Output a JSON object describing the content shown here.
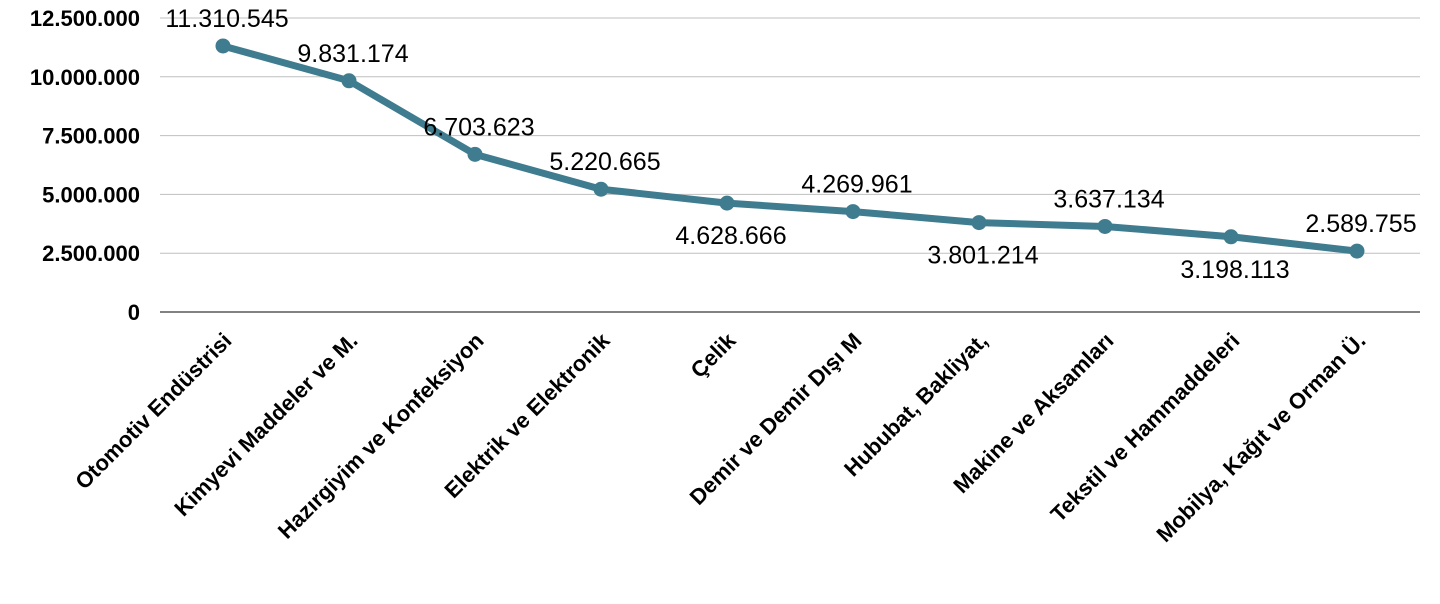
{
  "chart_data": {
    "type": "line",
    "title": "",
    "xlabel": "",
    "ylabel": "",
    "categories": [
      "Otomotiv Endüstrisi",
      "Kimyevi Maddeler ve M.",
      "Hazırgiyim ve Konfeksiyon",
      "Elektrik ve Elektronik",
      "Çelik",
      "Demir ve Demir Dışı M",
      "Hububat, Bakliyat,",
      "Makine ve Aksamları",
      "Tekstil ve Hammaddeleri",
      "Mobilya, Kağıt ve Orman Ü."
    ],
    "series": [
      {
        "values": [
          11310545,
          9831174,
          6703623,
          5220665,
          4628666,
          4269961,
          3801214,
          3637134,
          3198113,
          2589755
        ],
        "labels": [
          "11.310.545",
          "9.831.174",
          "6.703.623",
          "5.220.665",
          "4.628.666",
          "4.269.961",
          "3.801.214",
          "3.637.134",
          "3.198.113",
          "2.589.755"
        ],
        "label_positions": [
          "above",
          "above",
          "above",
          "above",
          "below",
          "above",
          "below",
          "above",
          "below",
          "above"
        ],
        "color": "#3f7c8f"
      }
    ],
    "ylim": [
      0,
      12500000
    ],
    "yticks": [
      0,
      2500000,
      5000000,
      7500000,
      10000000,
      12500000
    ],
    "ytick_labels": [
      "0",
      "2.500.000",
      "5.000.000",
      "7.500.000",
      "10.000.000",
      "12.500.000"
    ],
    "grid": true,
    "legend": "none"
  }
}
